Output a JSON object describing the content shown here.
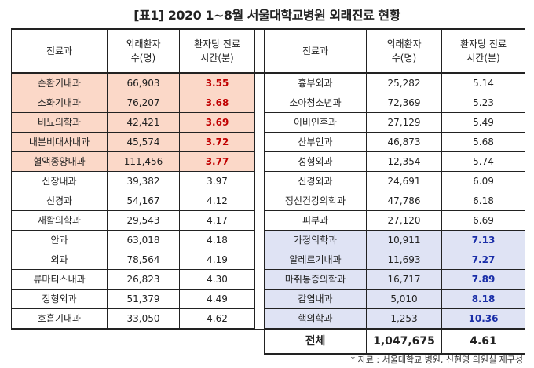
{
  "title": "[표1] 2020 1~8월 서울대학교병원 외래진료 현황",
  "headers": {
    "dept": "진료과",
    "patients_l1": "외래환자",
    "patients_l2": "수(명)",
    "time_l1": "환자당 진료",
    "time_l2": "시간(분)"
  },
  "left_rows": [
    {
      "dept": "순환기내과",
      "patients": "66,903",
      "time": "3.55"
    },
    {
      "dept": "소화기내과",
      "patients": "76,207",
      "time": "3.68"
    },
    {
      "dept": "비뇨의학과",
      "patients": "42,421",
      "time": "3.69"
    },
    {
      "dept": "내분비대사내과",
      "patients": "45,574",
      "time": "3.72"
    },
    {
      "dept": "혈액종양내과",
      "patients": "111,456",
      "time": "3.77"
    },
    {
      "dept": "신장내과",
      "patients": "39,382",
      "time": "3.97"
    },
    {
      "dept": "신경과",
      "patients": "54,167",
      "time": "4.12"
    },
    {
      "dept": "재활의학과",
      "patients": "29,543",
      "time": "4.17"
    },
    {
      "dept": "안과",
      "patients": "63,018",
      "time": "4.18"
    },
    {
      "dept": "외과",
      "patients": "78,564",
      "time": "4.19"
    },
    {
      "dept": "류마티스내과",
      "patients": "26,823",
      "time": "4.30"
    },
    {
      "dept": "정형외과",
      "patients": "51,379",
      "time": "4.49"
    },
    {
      "dept": "호흡기내과",
      "patients": "33,050",
      "time": "4.62"
    }
  ],
  "right_rows": [
    {
      "dept": "흉부외과",
      "patients": "25,282",
      "time": "5.14"
    },
    {
      "dept": "소아청소년과",
      "patients": "72,369",
      "time": "5.23"
    },
    {
      "dept": "이비인후과",
      "patients": "27,129",
      "time": "5.49"
    },
    {
      "dept": "산부인과",
      "patients": "46,873",
      "time": "5.68"
    },
    {
      "dept": "성형외과",
      "patients": "12,354",
      "time": "5.74"
    },
    {
      "dept": "신경외과",
      "patients": "24,691",
      "time": "6.09"
    },
    {
      "dept": "정신건강의학과",
      "patients": "47,786",
      "time": "6.18"
    },
    {
      "dept": "피부과",
      "patients": "27,120",
      "time": "6.69"
    },
    {
      "dept": "가정의학과",
      "patients": "10,911",
      "time": "7.13"
    },
    {
      "dept": "알레르기내과",
      "patients": "11,693",
      "time": "7.27"
    },
    {
      "dept": "마취통증의학과",
      "patients": "16,717",
      "time": "7.89"
    },
    {
      "dept": "감염내과",
      "patients": "5,010",
      "time": "8.18"
    },
    {
      "dept": "핵의학과",
      "patients": "1,253",
      "time": "10.36"
    }
  ],
  "total": {
    "label": "전체",
    "patients": "1,047,675",
    "time": "4.61"
  },
  "source": "* 자료 : 서울대학교 병원, 신현영 의원실 재구성"
}
